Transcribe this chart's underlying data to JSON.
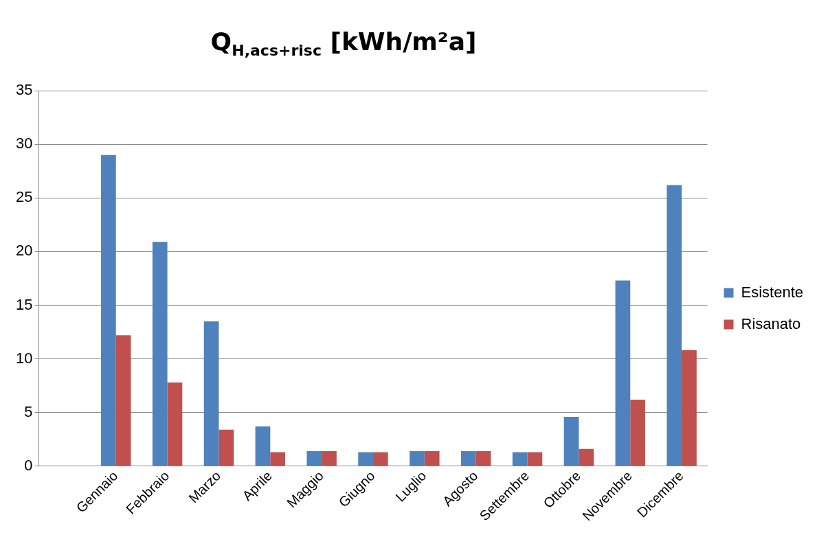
{
  "chart_data": {
    "type": "bar",
    "title": "Q$_{H,acs+risc}$ [kWh/m²a]",
    "categories": [
      null,
      "Gennaio",
      "Febbraio",
      "Marzo",
      "Aprile",
      "Maggio",
      "Giugno",
      "Luglio",
      "Agosto",
      "Settembre",
      "Ottobre",
      "Novembre",
      "Dicembre"
    ],
    "series": [
      {
        "name": "Esistente",
        "color": "#4f81bd",
        "values": [
          null,
          29,
          20.9,
          13.5,
          3.7,
          1.4,
          1.3,
          1.4,
          1.4,
          1.3,
          4.6,
          17.3,
          26.2
        ]
      },
      {
        "name": "Risanato",
        "color": "#c0504d",
        "values": [
          null,
          12.2,
          7.8,
          3.4,
          1.3,
          1.4,
          1.3,
          1.4,
          1.4,
          1.3,
          1.6,
          6.2,
          10.8
        ]
      }
    ],
    "ylim": [
      0,
      35
    ],
    "yticks": [
      0,
      5,
      10,
      15,
      20,
      25,
      30,
      35
    ],
    "grid": "y",
    "legend": "right"
  }
}
